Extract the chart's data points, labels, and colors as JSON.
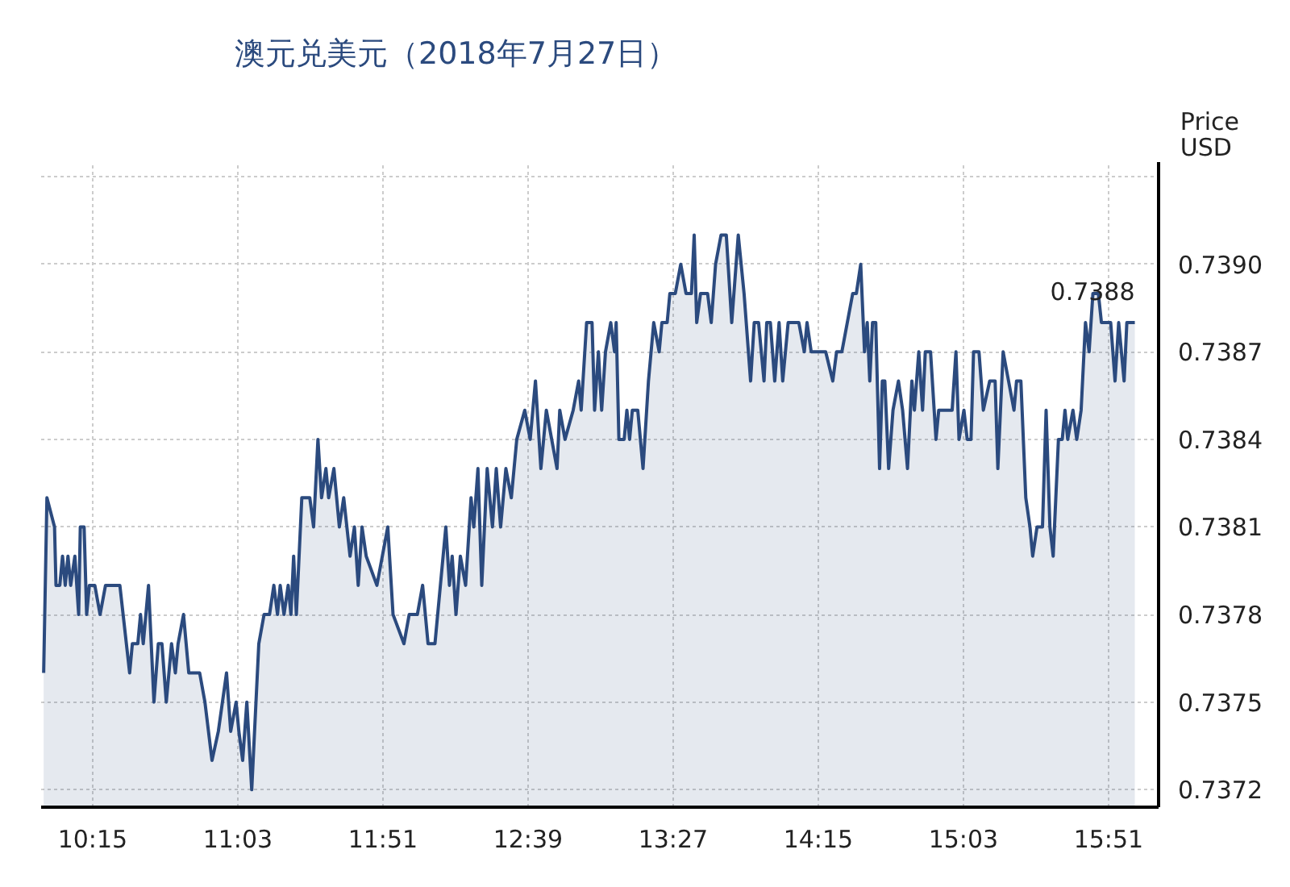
{
  "chart_data": {
    "type": "area",
    "title": "澳元兑美元（2018年7月27日）",
    "ylabel": "Price USD",
    "x": [
      9.98,
      9.998,
      10.04,
      10.048,
      10.069,
      10.084,
      10.099,
      10.114,
      10.129,
      10.152,
      10.173,
      10.182,
      10.203,
      10.217,
      10.232,
      10.262,
      10.291,
      10.321,
      10.38,
      10.4,
      10.454,
      10.469,
      10.499,
      10.514,
      10.529,
      10.558,
      10.588,
      10.612,
      10.632,
      10.656,
      10.685,
      10.706,
      10.721,
      10.751,
      10.78,
      10.84,
      10.869,
      10.908,
      10.943,
      10.988,
      11.011,
      11.041,
      11.056,
      11.077,
      11.1,
      11.127,
      11.166,
      11.195,
      11.225,
      11.249,
      11.269,
      11.284,
      11.305,
      11.328,
      11.343,
      11.358,
      11.373,
      11.403,
      11.447,
      11.468,
      11.492,
      11.512,
      11.536,
      11.551,
      11.58,
      11.61,
      11.634,
      11.669,
      11.693,
      11.714,
      11.735,
      11.758,
      11.817,
      11.847,
      11.877,
      11.906,
      11.966,
      11.995,
      12.04,
      12.069,
      12.099,
      12.137,
      12.167,
      12.197,
      12.217,
      12.232,
      12.253,
      12.277,
      12.306,
      12.336,
      12.351,
      12.374,
      12.395,
      12.425,
      12.454,
      12.475,
      12.499,
      12.528,
      12.558,
      12.588,
      12.632,
      12.662,
      12.691,
      12.721,
      12.751,
      12.81,
      12.825,
      12.854,
      12.899,
      12.929,
      12.943,
      12.973,
      13.003,
      13.017,
      13.038,
      13.056,
      13.077,
      13.106,
      13.127,
      13.136,
      13.151,
      13.18,
      13.195,
      13.21,
      13.225,
      13.255,
      13.284,
      13.314,
      13.343,
      13.373,
      13.388,
      13.417,
      13.432,
      13.462,
      13.492,
      13.521,
      13.551,
      13.566,
      13.58,
      13.601,
      13.64,
      13.66,
      13.684,
      13.714,
      13.743,
      13.773,
      13.809,
      13.841,
      13.877,
      13.897,
      13.921,
      13.951,
      13.966,
      13.986,
      14.01,
      14.034,
      14.054,
      14.084,
      14.143,
      14.173,
      14.188,
      14.211,
      14.291,
      14.33,
      14.351,
      14.38,
      14.41,
      14.44,
      14.46,
      14.484,
      14.505,
      14.52,
      14.534,
      14.549,
      14.567,
      14.588,
      14.603,
      14.617,
      14.638,
      14.662,
      14.692,
      14.715,
      14.742,
      14.766,
      14.78,
      14.804,
      14.825,
      14.84,
      14.869,
      14.899,
      14.914,
      14.958,
      14.988,
      15.009,
      15.026,
      15.053,
      15.071,
      15.092,
      15.106,
      15.136,
      15.16,
      15.195,
      15.225,
      15.24,
      15.269,
      15.299,
      15.329,
      15.343,
      15.367,
      15.394,
      15.417,
      15.432,
      15.456,
      15.486,
      15.506,
      15.527,
      15.545,
      15.574,
      15.595,
      15.61,
      15.625,
      15.654,
      15.675,
      15.699,
      15.723,
      15.743,
      15.764,
      15.794,
      15.811,
      15.862,
      15.886,
      15.906,
      15.936,
      15.951,
      15.995
    ],
    "series": [
      {
        "color": "#2b4a7e",
        "values": [
          0.7376,
          0.7382,
          0.7381,
          0.7379,
          0.7379,
          0.738,
          0.7379,
          0.738,
          0.7379,
          0.738,
          0.7378,
          0.7381,
          0.7381,
          0.7378,
          0.7379,
          0.7379,
          0.7378,
          0.7379,
          0.7379,
          0.7379,
          0.7376,
          0.7377,
          0.7377,
          0.7378,
          0.7377,
          0.7379,
          0.7375,
          0.7377,
          0.7377,
          0.7375,
          0.7377,
          0.7376,
          0.7377,
          0.7378,
          0.7376,
          0.7376,
          0.7375,
          0.7373,
          0.7374,
          0.7376,
          0.7374,
          0.7375,
          0.7374,
          0.7373,
          0.7375,
          0.7372,
          0.7377,
          0.7378,
          0.7378,
          0.7379,
          0.7378,
          0.7379,
          0.7378,
          0.7379,
          0.7378,
          0.738,
          0.7378,
          0.7382,
          0.7382,
          0.7381,
          0.7384,
          0.7382,
          0.7383,
          0.7382,
          0.7383,
          0.7381,
          0.7382,
          0.738,
          0.7381,
          0.7379,
          0.7381,
          0.738,
          0.7379,
          0.738,
          0.7381,
          0.7378,
          0.7377,
          0.7378,
          0.7378,
          0.7379,
          0.7377,
          0.7377,
          0.7379,
          0.7381,
          0.7379,
          0.738,
          0.7378,
          0.738,
          0.7379,
          0.7382,
          0.7381,
          0.7383,
          0.7379,
          0.7383,
          0.7381,
          0.7383,
          0.7381,
          0.7383,
          0.7382,
          0.7384,
          0.7385,
          0.7384,
          0.7386,
          0.7383,
          0.7385,
          0.7383,
          0.7385,
          0.7384,
          0.7385,
          0.7386,
          0.7385,
          0.7388,
          0.7388,
          0.7385,
          0.7387,
          0.7385,
          0.7387,
          0.7388,
          0.7387,
          0.7388,
          0.7384,
          0.7384,
          0.7385,
          0.7384,
          0.7385,
          0.7385,
          0.7383,
          0.7386,
          0.7388,
          0.7387,
          0.7388,
          0.7388,
          0.7389,
          0.7389,
          0.739,
          0.7389,
          0.7389,
          0.7391,
          0.7388,
          0.7389,
          0.7389,
          0.7388,
          0.739,
          0.7391,
          0.7391,
          0.7388,
          0.7391,
          0.7389,
          0.7386,
          0.7388,
          0.7388,
          0.7386,
          0.7388,
          0.7388,
          0.7386,
          0.7388,
          0.7386,
          0.7388,
          0.7388,
          0.7387,
          0.7388,
          0.7387,
          0.7387,
          0.7386,
          0.7387,
          0.7387,
          0.7388,
          0.7389,
          0.7389,
          0.739,
          0.7387,
          0.7388,
          0.7386,
          0.7388,
          0.7388,
          0.7383,
          0.7386,
          0.7386,
          0.7383,
          0.7385,
          0.7386,
          0.7385,
          0.7383,
          0.7386,
          0.7385,
          0.7387,
          0.7385,
          0.7387,
          0.7387,
          0.7384,
          0.7385,
          0.7385,
          0.7385,
          0.7387,
          0.7384,
          0.7385,
          0.7384,
          0.7384,
          0.7387,
          0.7387,
          0.7385,
          0.7386,
          0.7386,
          0.7383,
          0.7387,
          0.7386,
          0.7385,
          0.7386,
          0.7386,
          0.7382,
          0.7381,
          0.738,
          0.7381,
          0.7381,
          0.7385,
          0.7381,
          0.738,
          0.7384,
          0.7384,
          0.7385,
          0.7384,
          0.7385,
          0.7384,
          0.7385,
          0.7388,
          0.7387,
          0.7389,
          0.7389,
          0.7388,
          0.7388,
          0.7386,
          0.7388,
          0.7386,
          0.7388,
          0.7388
        ]
      }
    ],
    "xlim": [
      9.966,
      16.126
    ],
    "ylim": [
      0.73714,
      0.73935
    ],
    "xticks": [
      {
        "value": 10.25,
        "label": "10:15"
      },
      {
        "value": 11.05,
        "label": "11:03"
      },
      {
        "value": 11.85,
        "label": "11:51"
      },
      {
        "value": 12.65,
        "label": "12:39"
      },
      {
        "value": 13.45,
        "label": "13:27"
      },
      {
        "value": 14.25,
        "label": "14:15"
      },
      {
        "value": 15.05,
        "label": "15:03"
      },
      {
        "value": 15.85,
        "label": "15:51"
      }
    ],
    "yticks": [
      0.7372,
      0.7375,
      0.7378,
      0.7381,
      0.7384,
      0.7387,
      {
        "value": 0.739,
        "label": "0.7390"
      },
      {
        "value": 0.7393,
        "label": null
      }
    ],
    "annotations": [
      {
        "text": "0.7388",
        "x": 15.995,
        "y": 0.7388
      }
    ],
    "grid": true,
    "line_style": "solid"
  }
}
